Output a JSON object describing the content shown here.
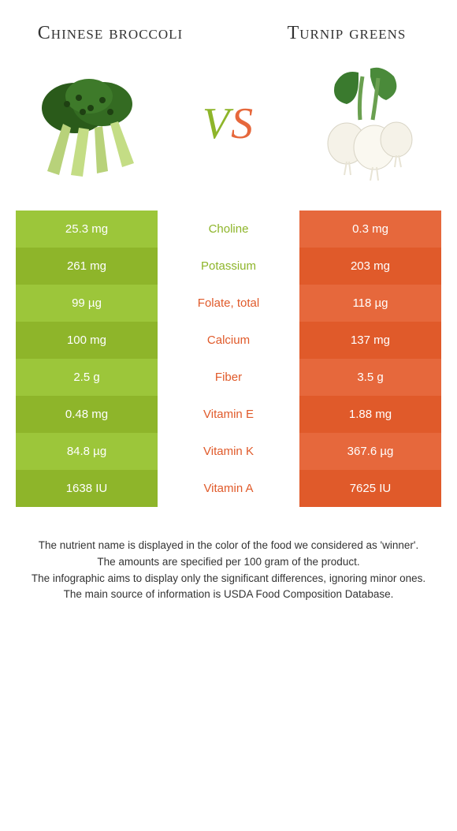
{
  "colors": {
    "green_dark": "#8eb52a",
    "green_light": "#9cc63a",
    "orange_dark": "#e05a2a",
    "orange_light": "#e6683c",
    "text": "#333333",
    "white": "#ffffff"
  },
  "header": {
    "left_title": "Chinese broccoli",
    "right_title": "Turnip greens",
    "vs_v": "V",
    "vs_s": "S"
  },
  "rows": [
    {
      "nutrient": "Choline",
      "left": "25.3 mg",
      "right": "0.3 mg",
      "winner": "left"
    },
    {
      "nutrient": "Potassium",
      "left": "261 mg",
      "right": "203 mg",
      "winner": "left"
    },
    {
      "nutrient": "Folate, total",
      "left": "99 µg",
      "right": "118 µg",
      "winner": "right"
    },
    {
      "nutrient": "Calcium",
      "left": "100 mg",
      "right": "137 mg",
      "winner": "right"
    },
    {
      "nutrient": "Fiber",
      "left": "2.5 g",
      "right": "3.5 g",
      "winner": "right"
    },
    {
      "nutrient": "Vitamin E",
      "left": "0.48 mg",
      "right": "1.88 mg",
      "winner": "right"
    },
    {
      "nutrient": "Vitamin K",
      "left": "84.8 µg",
      "right": "367.6 µg",
      "winner": "right"
    },
    {
      "nutrient": "Vitamin A",
      "left": "1638 IU",
      "right": "7625 IU",
      "winner": "right"
    }
  ],
  "footer": {
    "line1": "The nutrient name is displayed in the color of the food we considered as 'winner'.",
    "line2": "The amounts are specified per 100 gram of the product.",
    "line3": "The infographic aims to display only the significant differences, ignoring minor ones.",
    "line4": "The main source of information is USDA Food Composition Database."
  }
}
